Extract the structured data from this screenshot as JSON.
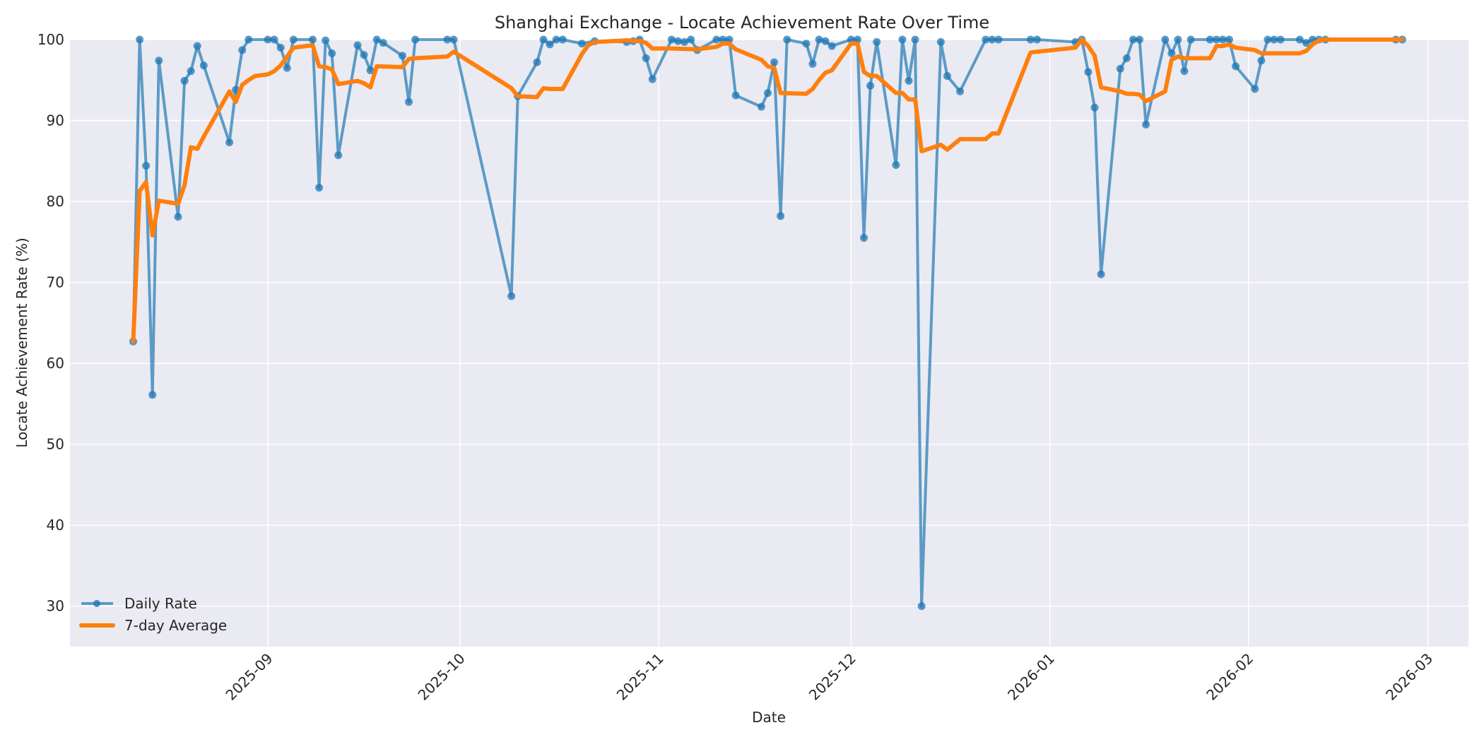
{
  "chart_data": {
    "type": "line",
    "title": "Shanghai Exchange - Locate Achievement Rate Over Time",
    "xlabel": "Date",
    "ylabel": "Locate Achievement Rate (%)",
    "ylim": [
      25,
      100
    ],
    "yticks": [
      30,
      40,
      50,
      60,
      70,
      80,
      90,
      100
    ],
    "xticks": [
      "2025-09",
      "2025-10",
      "2025-11",
      "2025-12",
      "2026-01",
      "2026-02",
      "2026-03"
    ],
    "grid": true,
    "legend_position": "lower left",
    "legend": [
      "Daily Rate",
      "7-day Average"
    ],
    "colors": {
      "daily": "#1f77b4",
      "avg": "#ff7f0e",
      "background": "#eaeaf2",
      "grid": "#ffffff"
    },
    "series": [
      {
        "name": "Daily Rate",
        "points": [
          [
            "2025-08-11",
            62.7
          ],
          [
            "2025-08-12",
            100
          ],
          [
            "2025-08-13",
            84.4
          ],
          [
            "2025-08-14",
            56.1
          ],
          [
            "2025-08-15",
            97.4
          ],
          [
            "2025-08-18",
            78.1
          ],
          [
            "2025-08-19",
            94.9
          ],
          [
            "2025-08-20",
            96.1
          ],
          [
            "2025-08-21",
            99.2
          ],
          [
            "2025-08-22",
            96.8
          ],
          [
            "2025-08-26",
            87.3
          ],
          [
            "2025-08-27",
            93.8
          ],
          [
            "2025-08-28",
            98.7
          ],
          [
            "2025-08-29",
            100
          ],
          [
            "2025-09-01",
            100
          ],
          [
            "2025-09-02",
            100
          ],
          [
            "2025-09-03",
            99.0
          ],
          [
            "2025-09-04",
            96.5
          ],
          [
            "2025-09-05",
            100
          ],
          [
            "2025-09-08",
            100
          ],
          [
            "2025-09-09",
            81.7
          ],
          [
            "2025-09-10",
            99.9
          ],
          [
            "2025-09-11",
            98.3
          ],
          [
            "2025-09-12",
            85.7
          ],
          [
            "2025-09-15",
            99.3
          ],
          [
            "2025-09-16",
            98.1
          ],
          [
            "2025-09-17",
            96.2
          ],
          [
            "2025-09-18",
            100
          ],
          [
            "2025-09-19",
            99.6
          ],
          [
            "2025-09-22",
            98.0
          ],
          [
            "2025-09-23",
            92.3
          ],
          [
            "2025-09-24",
            100
          ],
          [
            "2025-09-29",
            100
          ],
          [
            "2025-09-30",
            100
          ],
          [
            "2025-10-09",
            68.3
          ],
          [
            "2025-10-10",
            93.0
          ],
          [
            "2025-10-13",
            97.2
          ],
          [
            "2025-10-14",
            100
          ],
          [
            "2025-10-15",
            99.4
          ],
          [
            "2025-10-16",
            100
          ],
          [
            "2025-10-17",
            100
          ],
          [
            "2025-10-20",
            99.5
          ],
          [
            "2025-10-22",
            99.8
          ],
          [
            "2025-10-27",
            99.7
          ],
          [
            "2025-10-28",
            99.8
          ],
          [
            "2025-10-29",
            100
          ],
          [
            "2025-10-30",
            97.7
          ],
          [
            "2025-10-31",
            95.1
          ],
          [
            "2025-11-03",
            100
          ],
          [
            "2025-11-04",
            99.8
          ],
          [
            "2025-11-05",
            99.7
          ],
          [
            "2025-11-06",
            100
          ],
          [
            "2025-11-07",
            98.7
          ],
          [
            "2025-11-10",
            100
          ],
          [
            "2025-11-11",
            100
          ],
          [
            "2025-11-12",
            100
          ],
          [
            "2025-11-13",
            93.1
          ],
          [
            "2025-11-17",
            91.7
          ],
          [
            "2025-11-18",
            93.4
          ],
          [
            "2025-11-19",
            97.2
          ],
          [
            "2025-11-20",
            78.2
          ],
          [
            "2025-11-21",
            100
          ],
          [
            "2025-11-24",
            99.5
          ],
          [
            "2025-11-25",
            97.0
          ],
          [
            "2025-11-26",
            100
          ],
          [
            "2025-11-27",
            99.8
          ],
          [
            "2025-11-28",
            99.2
          ],
          [
            "2025-12-01",
            100
          ],
          [
            "2025-12-02",
            100
          ],
          [
            "2025-12-03",
            75.5
          ],
          [
            "2025-12-04",
            94.3
          ],
          [
            "2025-12-05",
            99.7
          ],
          [
            "2025-12-08",
            84.5
          ],
          [
            "2025-12-09",
            100
          ],
          [
            "2025-12-10",
            94.9
          ],
          [
            "2025-12-11",
            100
          ],
          [
            "2025-12-12",
            30.0
          ],
          [
            "2025-12-15",
            99.7
          ],
          [
            "2025-12-16",
            95.5
          ],
          [
            "2025-12-18",
            93.6
          ],
          [
            "2025-12-22",
            100
          ],
          [
            "2025-12-23",
            100
          ],
          [
            "2025-12-24",
            100
          ],
          [
            "2025-12-29",
            100
          ],
          [
            "2025-12-30",
            100
          ],
          [
            "2026-01-05",
            99.7
          ],
          [
            "2026-01-06",
            100
          ],
          [
            "2026-01-07",
            96.0
          ],
          [
            "2026-01-08",
            91.6
          ],
          [
            "2026-01-09",
            71.0
          ],
          [
            "2026-01-12",
            96.4
          ],
          [
            "2026-01-13",
            97.7
          ],
          [
            "2026-01-14",
            100
          ],
          [
            "2026-01-15",
            100
          ],
          [
            "2026-01-16",
            89.5
          ],
          [
            "2026-01-19",
            100
          ],
          [
            "2026-01-20",
            98.3
          ],
          [
            "2026-01-21",
            100
          ],
          [
            "2026-01-22",
            96.1
          ],
          [
            "2026-01-23",
            100
          ],
          [
            "2026-01-26",
            100
          ],
          [
            "2026-01-27",
            100
          ],
          [
            "2026-01-28",
            100
          ],
          [
            "2026-01-29",
            100
          ],
          [
            "2026-01-30",
            96.7
          ],
          [
            "2026-02-02",
            93.9
          ],
          [
            "2026-02-03",
            97.4
          ],
          [
            "2026-02-04",
            100
          ],
          [
            "2026-02-05",
            100
          ],
          [
            "2026-02-06",
            100
          ],
          [
            "2026-02-09",
            100
          ],
          [
            "2026-02-10",
            99.6
          ],
          [
            "2026-02-11",
            100
          ],
          [
            "2026-02-12",
            100
          ],
          [
            "2026-02-13",
            100
          ],
          [
            "2026-02-24",
            100
          ],
          [
            "2026-02-25",
            100
          ]
        ]
      },
      {
        "name": "7-day Average",
        "points": [
          [
            "2025-08-11",
            62.7
          ],
          [
            "2025-08-12",
            81.3
          ],
          [
            "2025-08-13",
            82.4
          ],
          [
            "2025-08-14",
            75.8
          ],
          [
            "2025-08-15",
            80.1
          ],
          [
            "2025-08-18",
            79.7
          ],
          [
            "2025-08-19",
            82.0
          ],
          [
            "2025-08-20",
            86.7
          ],
          [
            "2025-08-21",
            86.5
          ],
          [
            "2025-08-22",
            88.0
          ],
          [
            "2025-08-26",
            93.6
          ],
          [
            "2025-08-27",
            92.3
          ],
          [
            "2025-08-28",
            94.4
          ],
          [
            "2025-08-29",
            95.0
          ],
          [
            "2025-08-30",
            95.5
          ],
          [
            "2025-09-01",
            95.7
          ],
          [
            "2025-09-02",
            96.1
          ],
          [
            "2025-09-03",
            96.8
          ],
          [
            "2025-09-04",
            97.9
          ],
          [
            "2025-09-05",
            99.0
          ],
          [
            "2025-09-08",
            99.3
          ],
          [
            "2025-09-09",
            96.7
          ],
          [
            "2025-09-10",
            96.6
          ],
          [
            "2025-09-11",
            96.3
          ],
          [
            "2025-09-12",
            94.5
          ],
          [
            "2025-09-15",
            94.9
          ],
          [
            "2025-09-16",
            94.6
          ],
          [
            "2025-09-17",
            94.1
          ],
          [
            "2025-09-18",
            96.7
          ],
          [
            "2025-09-22",
            96.6
          ],
          [
            "2025-09-23",
            97.6
          ],
          [
            "2025-09-24",
            97.7
          ],
          [
            "2025-09-29",
            97.9
          ],
          [
            "2025-09-30",
            98.5
          ],
          [
            "2025-10-09",
            94.0
          ],
          [
            "2025-10-10",
            93.0
          ],
          [
            "2025-10-13",
            92.9
          ],
          [
            "2025-10-14",
            94.0
          ],
          [
            "2025-10-15",
            93.9
          ],
          [
            "2025-10-17",
            93.9
          ],
          [
            "2025-10-20",
            98.2
          ],
          [
            "2025-10-21",
            99.3
          ],
          [
            "2025-10-22",
            99.7
          ],
          [
            "2025-10-27",
            99.9
          ],
          [
            "2025-10-29",
            99.8
          ],
          [
            "2025-10-30",
            99.6
          ],
          [
            "2025-10-31",
            98.9
          ],
          [
            "2025-11-03",
            98.9
          ],
          [
            "2025-11-07",
            98.8
          ],
          [
            "2025-11-10",
            99.1
          ],
          [
            "2025-11-11",
            99.5
          ],
          [
            "2025-11-12",
            99.5
          ],
          [
            "2025-11-13",
            98.8
          ],
          [
            "2025-11-17",
            97.5
          ],
          [
            "2025-11-18",
            96.7
          ],
          [
            "2025-11-19",
            96.5
          ],
          [
            "2025-11-20",
            93.4
          ],
          [
            "2025-11-24",
            93.3
          ],
          [
            "2025-11-25",
            93.9
          ],
          [
            "2025-11-26",
            95.0
          ],
          [
            "2025-11-27",
            95.9
          ],
          [
            "2025-11-28",
            96.2
          ],
          [
            "2025-12-01",
            99.5
          ],
          [
            "2025-12-02",
            99.5
          ],
          [
            "2025-12-03",
            96.0
          ],
          [
            "2025-12-04",
            95.5
          ],
          [
            "2025-12-05",
            95.5
          ],
          [
            "2025-12-08",
            93.4
          ],
          [
            "2025-12-09",
            93.4
          ],
          [
            "2025-12-10",
            92.6
          ],
          [
            "2025-12-11",
            92.6
          ],
          [
            "2025-12-12",
            86.2
          ],
          [
            "2025-12-15",
            87.0
          ],
          [
            "2025-12-16",
            86.4
          ],
          [
            "2025-12-18",
            87.7
          ],
          [
            "2025-12-22",
            87.7
          ],
          [
            "2025-12-23",
            88.4
          ],
          [
            "2025-12-24",
            88.4
          ],
          [
            "2025-12-29",
            98.4
          ],
          [
            "2025-12-30",
            98.5
          ],
          [
            "2026-01-05",
            99.0
          ],
          [
            "2026-01-06",
            100
          ],
          [
            "2026-01-07",
            99.2
          ],
          [
            "2026-01-08",
            98.0
          ],
          [
            "2026-01-09",
            94.1
          ],
          [
            "2026-01-12",
            93.6
          ],
          [
            "2026-01-13",
            93.3
          ],
          [
            "2026-01-14",
            93.3
          ],
          [
            "2026-01-15",
            93.2
          ],
          [
            "2026-01-16",
            92.4
          ],
          [
            "2026-01-19",
            93.6
          ],
          [
            "2026-01-20",
            97.5
          ],
          [
            "2026-01-21",
            97.9
          ],
          [
            "2026-01-22",
            97.7
          ],
          [
            "2026-01-26",
            97.7
          ],
          [
            "2026-01-27",
            99.2
          ],
          [
            "2026-01-28",
            99.2
          ],
          [
            "2026-01-29",
            99.4
          ],
          [
            "2026-01-30",
            99.0
          ],
          [
            "2026-02-02",
            98.7
          ],
          [
            "2026-02-03",
            98.3
          ],
          [
            "2026-02-04",
            98.3
          ],
          [
            "2026-02-09",
            98.3
          ],
          [
            "2026-02-10",
            98.6
          ],
          [
            "2026-02-11",
            99.4
          ],
          [
            "2026-02-12",
            99.9
          ],
          [
            "2026-02-13",
            100
          ],
          [
            "2026-02-24",
            100
          ],
          [
            "2026-02-25",
            100
          ]
        ]
      }
    ]
  }
}
